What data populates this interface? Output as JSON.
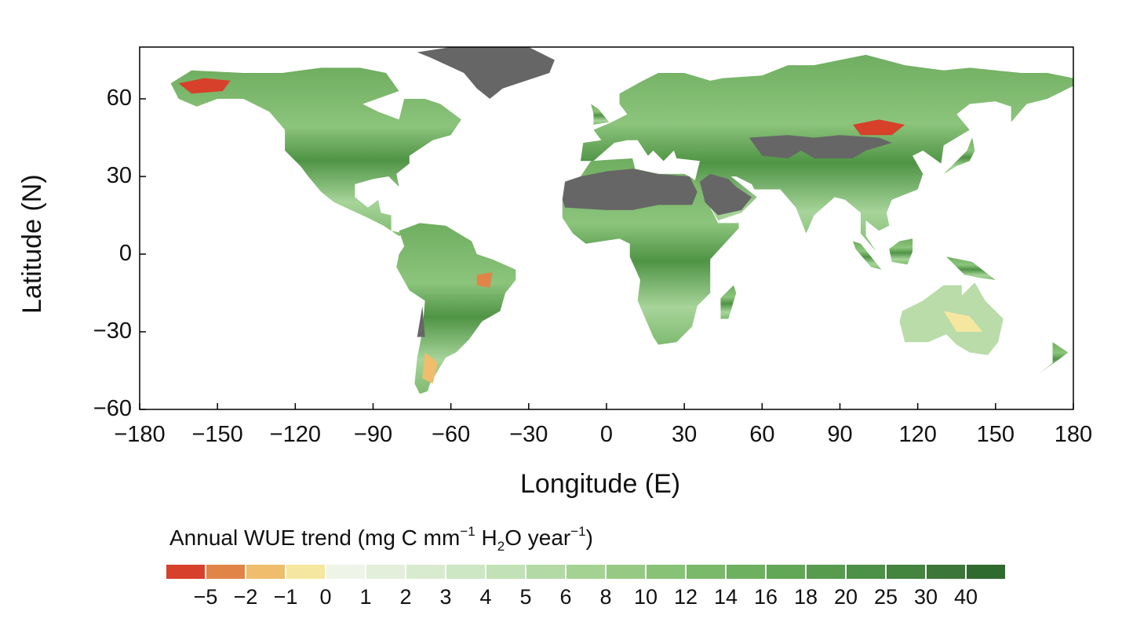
{
  "map": {
    "xlabel": "Longitude (E)",
    "ylabel": "Latitude (N)",
    "xlim": [
      -180,
      180
    ],
    "ylim": [
      -60,
      80
    ],
    "x_ticks": [
      "−180",
      "−150",
      "−120",
      "−90",
      "−60",
      "−30",
      "0",
      "30",
      "60",
      "90",
      "120",
      "150",
      "180"
    ],
    "x_tick_values": [
      -180,
      -150,
      -120,
      -90,
      -60,
      -30,
      0,
      30,
      60,
      90,
      120,
      150,
      180
    ],
    "y_ticks": [
      "60",
      "30",
      "0",
      "−30",
      "−60"
    ],
    "y_tick_values": [
      60,
      30,
      0,
      -30,
      -60
    ],
    "land_no_data_color": "#666666",
    "ocean_color": "#ffffff"
  },
  "colorbar": {
    "title_main": "Annual WUE trend (mg C mm",
    "title_sup1": "−1",
    "title_h": " H",
    "title_sub": "2",
    "title_rest": "O year",
    "title_sup2": "−1",
    "title_close": ")",
    "labels": [
      "−5",
      "−2",
      "−1",
      "0",
      "1",
      "2",
      "3",
      "4",
      "5",
      "6",
      "8",
      "10",
      "12",
      "14",
      "16",
      "18",
      "20",
      "25",
      "30",
      "40"
    ],
    "colors": [
      "#d7402a",
      "#e08547",
      "#f0bd6c",
      "#f6e7a0",
      "#eef5e8",
      "#e3efdb",
      "#d8ebcf",
      "#cde6c3",
      "#c2e1b6",
      "#b3daa5",
      "#a4d293",
      "#96ca84",
      "#88c277",
      "#7ab86a",
      "#6db05f",
      "#62a657",
      "#579b4f",
      "#4d9047",
      "#43843f",
      "#3c7638",
      "#2f6a2e"
    ]
  }
}
